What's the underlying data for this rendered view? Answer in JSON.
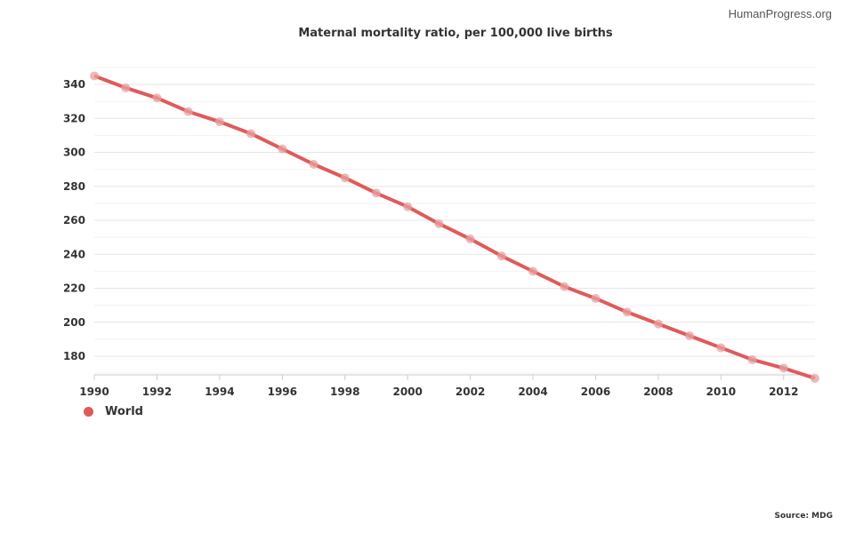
{
  "brand": "HumanProgress.org",
  "source": "Source: MDG",
  "colors": {
    "series": "#e05a5a",
    "marker": "#eaa0a0",
    "grid": "#e6e6e6"
  },
  "chart_data": {
    "type": "line",
    "title": "Maternal mortality ratio, per 100,000 live births",
    "xlabel": "",
    "ylabel": "",
    "xlim": [
      1990,
      2013
    ],
    "ylim": [
      167,
      346
    ],
    "grid": true,
    "legend_position": "bottom-left",
    "x_ticks": [
      "1990",
      "1992",
      "1994",
      "1996",
      "1998",
      "2000",
      "2002",
      "2004",
      "2006",
      "2008",
      "2010",
      "2012"
    ],
    "y_ticks": [
      "340",
      "320",
      "300",
      "280",
      "260",
      "240",
      "220",
      "200",
      "180"
    ],
    "x": [
      1990,
      1991,
      1992,
      1993,
      1994,
      1995,
      1996,
      1997,
      1998,
      1999,
      2000,
      2001,
      2002,
      2003,
      2004,
      2005,
      2006,
      2007,
      2008,
      2009,
      2010,
      2011,
      2012,
      2013
    ],
    "series": [
      {
        "name": "World",
        "values": [
          345,
          338,
          332,
          324,
          318,
          311,
          302,
          293,
          285,
          276,
          268,
          258,
          249,
          239,
          230,
          221,
          214,
          206,
          199,
          192,
          185,
          178,
          173,
          167
        ]
      }
    ]
  }
}
